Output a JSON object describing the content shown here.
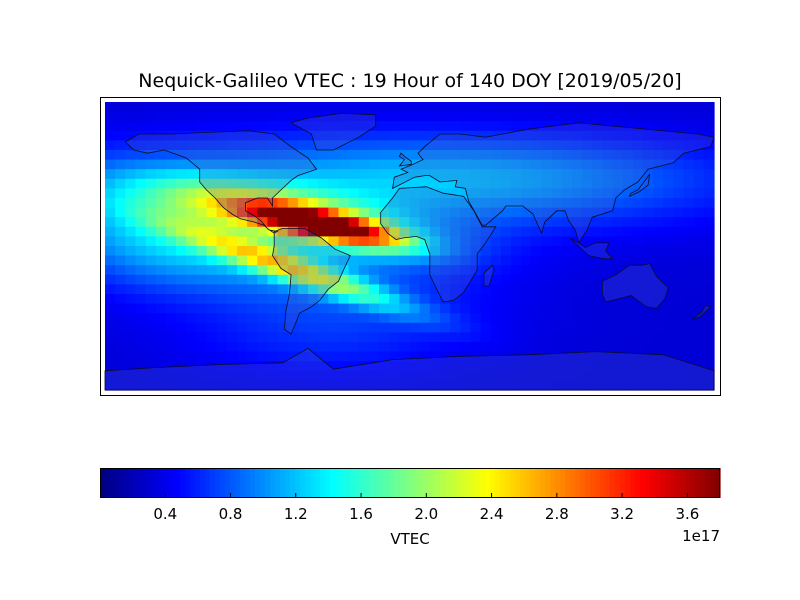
{
  "chart_data": {
    "type": "heatmap",
    "title": "Nequick-Galileo VTEC : 19 Hour of 140 DOY [2019/05/20]",
    "projection": "equirectangular world map with coastlines and country borders",
    "map_extent": {
      "lon": [
        -180,
        180
      ],
      "lat": [
        -90,
        90
      ]
    },
    "value_range": [
      0.0,
      3.8e+17
    ],
    "colormap": "jet",
    "colors": [
      "#00007f",
      "#0000ff",
      "#007fff",
      "#00ffff",
      "#7fff7f",
      "#ffff00",
      "#ff7f00",
      "#ff0000",
      "#7f0000"
    ],
    "colorbar": {
      "label": "VTEC",
      "offset_label": "1e17",
      "orientation": "horizontal",
      "ticks": [
        0.4,
        0.8,
        1.2,
        1.6,
        2.0,
        2.4,
        2.8,
        3.2,
        3.6
      ],
      "tick_labels": [
        "0.4",
        "0.8",
        "1.2",
        "1.6",
        "2.0",
        "2.4",
        "2.8",
        "3.2",
        "3.6"
      ],
      "range": [
        0.0,
        3.8
      ]
    },
    "features": [
      {
        "description": "equatorial ionization anomaly crest (northern)",
        "peak_lon": -45,
        "peak_lat": 12,
        "peak_value": 3.7e+17
      },
      {
        "description": "equatorial ionization anomaly crest (southern)",
        "peak_lon": -60,
        "peak_lat": -12,
        "peak_value": 2e+17
      },
      {
        "description": "night-side background",
        "value_approx": 3e+16
      }
    ]
  }
}
